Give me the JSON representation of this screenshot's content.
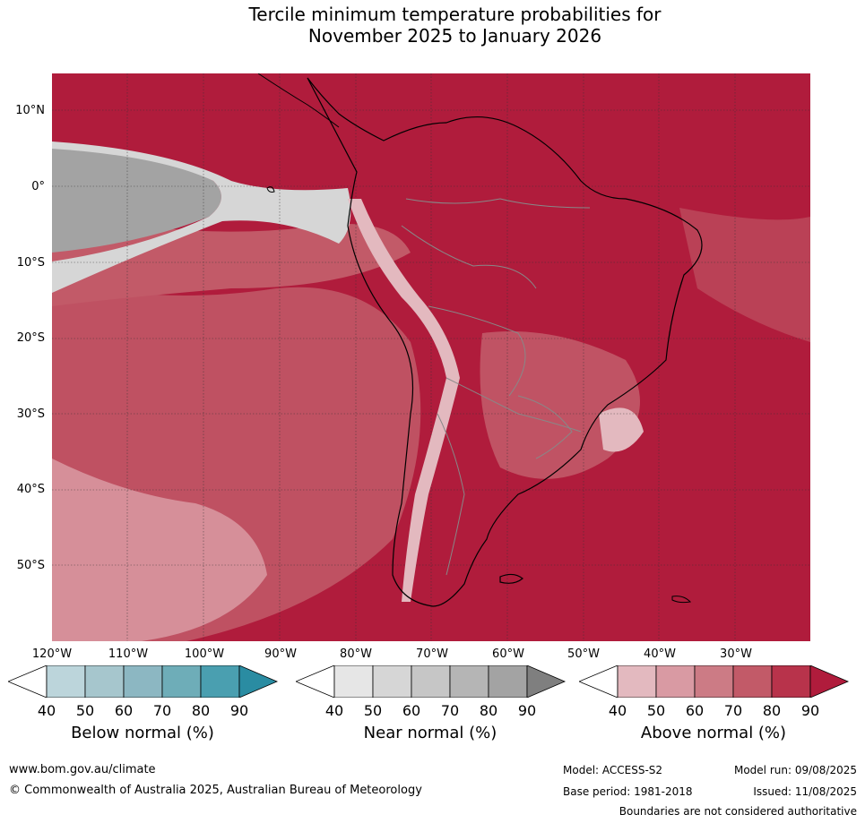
{
  "title_line1": "Tercile minimum temperature probabilities for",
  "title_line2": "November 2025 to January 2026",
  "lat_labels": [
    "10°N",
    "0°",
    "10°S",
    "20°S",
    "30°S",
    "40°S",
    "50°S"
  ],
  "lon_labels": [
    "120°W",
    "110°W",
    "100°W",
    "90°W",
    "80°W",
    "70°W",
    "60°W",
    "50°W",
    "40°W",
    "30°W"
  ],
  "colorbars": [
    {
      "label": "Below normal (%)",
      "ticks": [
        "40",
        "50",
        "60",
        "70",
        "80",
        "90"
      ],
      "colors": [
        "#ffffff",
        "#bcd5db",
        "#a6c6cd",
        "#8cb7c2",
        "#6eadb8",
        "#4a9fb0",
        "#2a8ca2"
      ]
    },
    {
      "label": "Near normal (%)",
      "ticks": [
        "40",
        "50",
        "60",
        "70",
        "80",
        "90"
      ],
      "colors": [
        "#ffffff",
        "#e6e6e6",
        "#d6d6d6",
        "#c6c6c6",
        "#b5b5b5",
        "#a3a3a3",
        "#7f7f7f"
      ]
    },
    {
      "label": "Above normal (%)",
      "ticks": [
        "40",
        "50",
        "60",
        "70",
        "80",
        "90"
      ],
      "colors": [
        "#ffffff",
        "#e3b9bf",
        "#d99aa3",
        "#cc7b85",
        "#c25a68",
        "#b8334b",
        "#b01c3c"
      ]
    }
  ],
  "footer": {
    "url": "www.bom.gov.au/climate",
    "copyright": "© Commonwealth of Australia 2025, Australian Bureau of Meteorology",
    "model": "Model: ACCESS-S2",
    "model_run": "Model run: 09/08/2025",
    "base_period": "Base period: 1981-2018",
    "issued": "Issued: 11/08/2025",
    "disclaimer": "Boundaries are not considered authoritative"
  }
}
